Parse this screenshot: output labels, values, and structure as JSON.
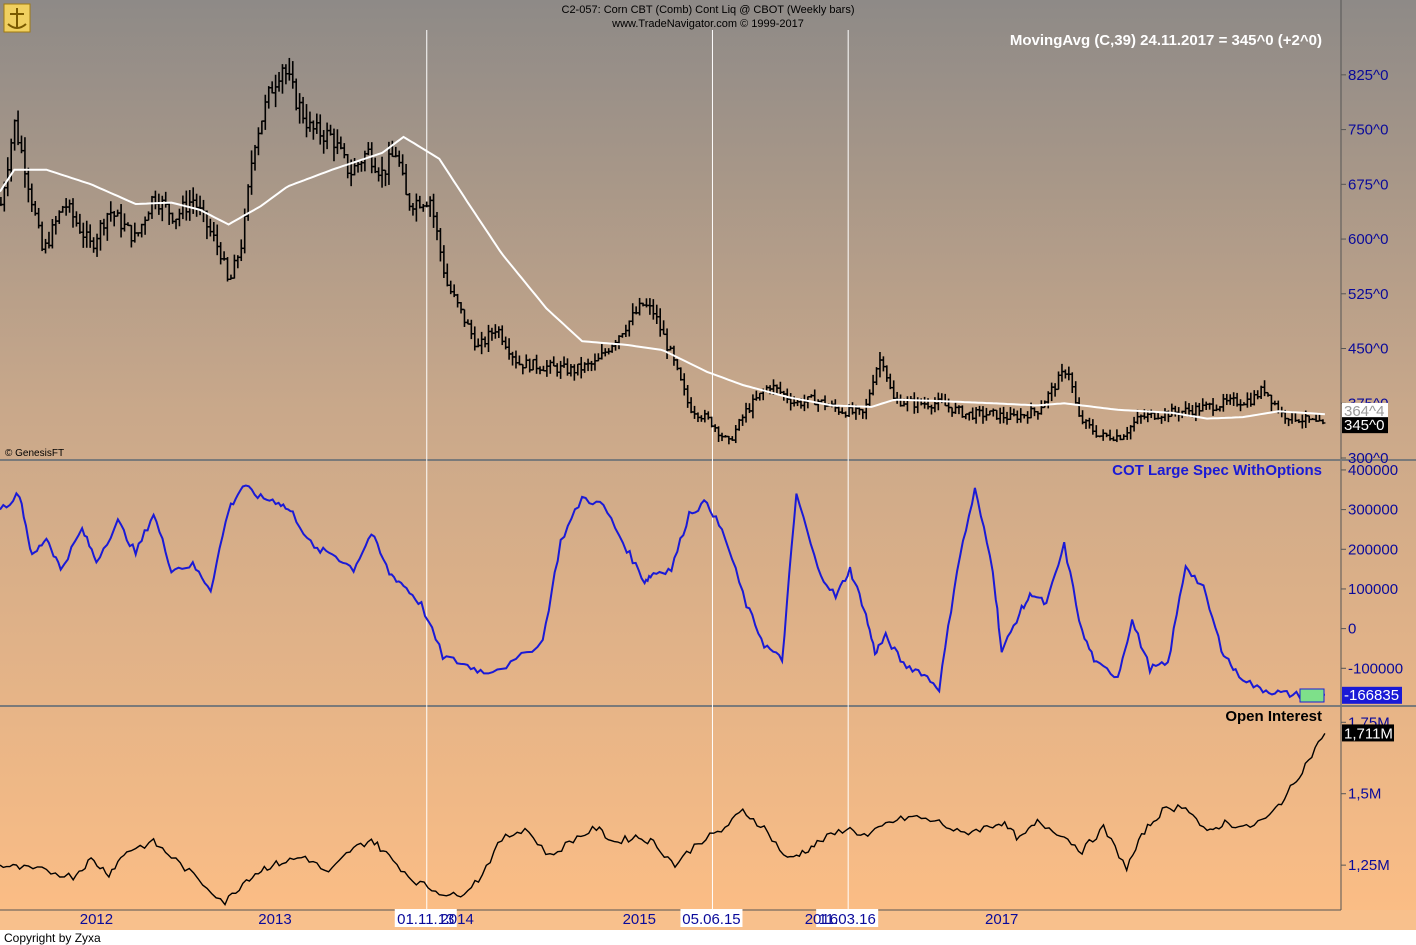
{
  "header": {
    "line1": "C2-057:  Corn CBT (Comb) Cont Liq @ CBOT  (Weekly bars)",
    "line2": "www.TradeNavigator.com © 1999-2017"
  },
  "footer": {
    "copyright": "Copyright by Zyxa"
  },
  "credit": "© GenesisFT",
  "annotation": "MovingAvg (C,39)   24.11.2017 = 345^0 (+2^0)",
  "colors": {
    "price_bars": "#000000",
    "moving_avg": "#ffffff",
    "cot_line": "#1a1ad6",
    "oi_line": "#000000",
    "axis_text": "#0a0a9a",
    "bg_top": "#8e8a87",
    "bg_bottom": "#fbbd85"
  },
  "chart_data": [
    {
      "type": "bar",
      "name": "Price",
      "ylim": [
        300,
        870
      ],
      "yticks": [
        825,
        750,
        675,
        600,
        525,
        450,
        375,
        300
      ],
      "ytick_labels": [
        "825^0",
        "750^0",
        "675^0",
        "600^0",
        "525^0",
        "450^0",
        "375^0",
        "300^0"
      ],
      "markers": [
        {
          "label": "364^4",
          "value": 364.5
        },
        {
          "label": "345^0",
          "value": 345
        }
      ],
      "x_ticks": [
        "2012",
        "2013",
        "2014",
        "2015",
        "2016",
        "2017"
      ],
      "vlines": [
        "01.11.13",
        "05.06.15",
        "11.03.16"
      ],
      "price_path": [
        {
          "t": 2011.44,
          "v": 640
        },
        {
          "t": 2011.52,
          "v": 760
        },
        {
          "t": 2011.58,
          "v": 700
        },
        {
          "t": 2011.68,
          "v": 580
        },
        {
          "t": 2011.8,
          "v": 650
        },
        {
          "t": 2011.95,
          "v": 590
        },
        {
          "t": 2012.05,
          "v": 640
        },
        {
          "t": 2012.2,
          "v": 600
        },
        {
          "t": 2012.3,
          "v": 660
        },
        {
          "t": 2012.42,
          "v": 630
        },
        {
          "t": 2012.52,
          "v": 655
        },
        {
          "t": 2012.68,
          "v": 580
        },
        {
          "t": 2012.72,
          "v": 535
        },
        {
          "t": 2012.8,
          "v": 600
        },
        {
          "t": 2012.86,
          "v": 730
        },
        {
          "t": 2012.95,
          "v": 800
        },
        {
          "t": 2013.02,
          "v": 840
        },
        {
          "t": 2013.1,
          "v": 790
        },
        {
          "t": 2013.18,
          "v": 750
        },
        {
          "t": 2013.3,
          "v": 740
        },
        {
          "t": 2013.4,
          "v": 690
        },
        {
          "t": 2013.5,
          "v": 720
        },
        {
          "t": 2013.58,
          "v": 690
        },
        {
          "t": 2013.66,
          "v": 720
        },
        {
          "t": 2013.72,
          "v": 650
        },
        {
          "t": 2013.85,
          "v": 655
        },
        {
          "t": 2013.94,
          "v": 540
        },
        {
          "t": 2014.02,
          "v": 500
        },
        {
          "t": 2014.12,
          "v": 450
        },
        {
          "t": 2014.22,
          "v": 480
        },
        {
          "t": 2014.34,
          "v": 430
        },
        {
          "t": 2014.5,
          "v": 425
        },
        {
          "t": 2014.65,
          "v": 420
        },
        {
          "t": 2014.78,
          "v": 430
        },
        {
          "t": 2014.94,
          "v": 480
        },
        {
          "t": 2015.04,
          "v": 510
        },
        {
          "t": 2015.1,
          "v": 500
        },
        {
          "t": 2015.2,
          "v": 440
        },
        {
          "t": 2015.3,
          "v": 370
        },
        {
          "t": 2015.42,
          "v": 350
        },
        {
          "t": 2015.52,
          "v": 320
        },
        {
          "t": 2015.62,
          "v": 365
        },
        {
          "t": 2015.75,
          "v": 400
        },
        {
          "t": 2015.9,
          "v": 375
        },
        {
          "t": 2016.0,
          "v": 380
        },
        {
          "t": 2016.15,
          "v": 365
        },
        {
          "t": 2016.28,
          "v": 360
        },
        {
          "t": 2016.34,
          "v": 420
        },
        {
          "t": 2016.38,
          "v": 440
        },
        {
          "t": 2016.44,
          "v": 380
        },
        {
          "t": 2016.55,
          "v": 375
        },
        {
          "t": 2016.7,
          "v": 375
        },
        {
          "t": 2016.85,
          "v": 360
        },
        {
          "t": 2017.0,
          "v": 360
        },
        {
          "t": 2017.1,
          "v": 355
        },
        {
          "t": 2017.25,
          "v": 365
        },
        {
          "t": 2017.35,
          "v": 400
        },
        {
          "t": 2017.42,
          "v": 425
        },
        {
          "t": 2017.48,
          "v": 355
        },
        {
          "t": 2017.6,
          "v": 330
        },
        {
          "t": 2017.72,
          "v": 330
        },
        {
          "t": 2017.82,
          "v": 355
        },
        {
          "t": 2017.92,
          "v": 360
        },
        {
          "t": 2018.1,
          "v": 365
        },
        {
          "t": 2018.3,
          "v": 375
        },
        {
          "t": 2018.45,
          "v": 380
        },
        {
          "t": 2018.52,
          "v": 395
        },
        {
          "t": 2018.62,
          "v": 360
        },
        {
          "t": 2018.78,
          "v": 350
        },
        {
          "t": 2018.86,
          "v": 343
        }
      ],
      "ma_path": [
        {
          "t": 2011.44,
          "v": 665
        },
        {
          "t": 2011.52,
          "v": 695
        },
        {
          "t": 2011.7,
          "v": 695
        },
        {
          "t": 2011.95,
          "v": 675
        },
        {
          "t": 2012.2,
          "v": 648
        },
        {
          "t": 2012.4,
          "v": 650
        },
        {
          "t": 2012.56,
          "v": 640
        },
        {
          "t": 2012.72,
          "v": 620
        },
        {
          "t": 2012.9,
          "v": 645
        },
        {
          "t": 2013.05,
          "v": 672
        },
        {
          "t": 2013.3,
          "v": 695
        },
        {
          "t": 2013.58,
          "v": 718
        },
        {
          "t": 2013.7,
          "v": 740
        },
        {
          "t": 2013.9,
          "v": 710
        },
        {
          "t": 2014.06,
          "v": 650
        },
        {
          "t": 2014.25,
          "v": 580
        },
        {
          "t": 2014.5,
          "v": 505
        },
        {
          "t": 2014.7,
          "v": 460
        },
        {
          "t": 2014.95,
          "v": 455
        },
        {
          "t": 2015.15,
          "v": 448
        },
        {
          "t": 2015.4,
          "v": 418
        },
        {
          "t": 2015.6,
          "v": 400
        },
        {
          "t": 2015.86,
          "v": 383
        },
        {
          "t": 2016.1,
          "v": 372
        },
        {
          "t": 2016.32,
          "v": 370
        },
        {
          "t": 2016.45,
          "v": 380
        },
        {
          "t": 2016.7,
          "v": 378
        },
        {
          "t": 2017.0,
          "v": 375
        },
        {
          "t": 2017.25,
          "v": 372
        },
        {
          "t": 2017.4,
          "v": 375
        },
        {
          "t": 2017.7,
          "v": 366
        },
        {
          "t": 2018.0,
          "v": 362
        },
        {
          "t": 2018.2,
          "v": 354
        },
        {
          "t": 2018.4,
          "v": 356
        },
        {
          "t": 2018.6,
          "v": 364
        },
        {
          "t": 2018.86,
          "v": 360
        }
      ]
    },
    {
      "type": "line",
      "title": "COT Large Spec WithOptions",
      "ylim": [
        -190000,
        420000
      ],
      "yticks": [
        400000,
        300000,
        200000,
        100000,
        0,
        -100000
      ],
      "ytick_labels": [
        "400000",
        "300000",
        "200000",
        "100000",
        "0",
        "-100000"
      ],
      "last_value_label": "-166835",
      "series": [
        {
          "x": [
            2011.44,
            2011.55,
            2011.62,
            2011.7,
            2011.78,
            2011.9,
            2011.98,
            2012.1,
            2012.2,
            2012.3,
            2012.4,
            2012.52,
            2012.62,
            2012.72,
            2012.8,
            2012.9,
            2013.0,
            2013.08,
            2013.2,
            2013.3,
            2013.42,
            2013.52,
            2013.62,
            2013.7,
            2013.8,
            2013.92,
            2014.04,
            2014.15,
            2014.3,
            2014.48,
            2014.58,
            2014.7,
            2014.82,
            2014.95,
            2015.05,
            2015.1,
            2015.2,
            2015.3,
            2015.4,
            2015.5,
            2015.62,
            2015.72,
            2015.82,
            2015.9,
            2016.02,
            2016.12,
            2016.2,
            2016.28,
            2016.34,
            2016.4,
            2016.5,
            2016.6,
            2016.7,
            2016.8,
            2016.9,
            2017.0,
            2017.05,
            2017.15,
            2017.22,
            2017.3,
            2017.4,
            2017.5,
            2017.58,
            2017.7,
            2017.78,
            2017.88,
            2017.98,
            2018.08,
            2018.18,
            2018.28,
            2018.36,
            2018.48,
            2018.58,
            2018.68,
            2018.8,
            2018.86
          ],
          "y": [
            300000,
            340000,
            180000,
            230000,
            150000,
            250000,
            170000,
            270000,
            190000,
            290000,
            150000,
            160000,
            100000,
            300000,
            360000,
            330000,
            320000,
            290000,
            200000,
            190000,
            150000,
            240000,
            140000,
            110000,
            60000,
            -70000,
            -90000,
            -110000,
            -90000,
            -30000,
            220000,
            330000,
            310000,
            200000,
            120000,
            140000,
            150000,
            290000,
            320000,
            230000,
            60000,
            -40000,
            -80000,
            340000,
            150000,
            80000,
            150000,
            50000,
            -60000,
            -20000,
            -90000,
            -110000,
            -150000,
            150000,
            350000,
            150000,
            -60000,
            40000,
            90000,
            60000,
            210000,
            -10000,
            -90000,
            -120000,
            20000,
            -100000,
            -90000,
            160000,
            100000,
            -50000,
            -110000,
            -150000,
            -160000,
            -166835,
            -166835,
            -166835
          ]
        }
      ]
    },
    {
      "type": "line",
      "title": "Open Interest",
      "ylim": [
        1.1,
        1.8
      ],
      "yticks": [
        1.75,
        1.5,
        1.25
      ],
      "ytick_labels": [
        "1,75M",
        "1,5M",
        "1,25M"
      ],
      "last_value_label": "1,711M",
      "series": [
        {
          "x": [
            2011.44,
            2011.55,
            2011.7,
            2011.85,
            2011.95,
            2012.05,
            2012.15,
            2012.3,
            2012.4,
            2012.55,
            2012.7,
            2012.82,
            2012.92,
            2013.02,
            2013.15,
            2013.28,
            2013.4,
            2013.52,
            2013.62,
            2013.75,
            2013.88,
            2014.0,
            2014.12,
            2014.25,
            2014.38,
            2014.52,
            2014.65,
            2014.78,
            2014.88,
            2015.0,
            2015.1,
            2015.22,
            2015.35,
            2015.48,
            2015.6,
            2015.72,
            2015.85,
            2015.95,
            2016.05,
            2016.18,
            2016.3,
            2016.42,
            2016.55,
            2016.7,
            2016.82,
            2016.95,
            2017.05,
            2017.15,
            2017.25,
            2017.38,
            2017.5,
            2017.62,
            2017.75,
            2017.85,
            2017.95,
            2018.08,
            2018.2,
            2018.3,
            2018.42,
            2018.55,
            2018.65,
            2018.75,
            2018.86
          ],
          "y": [
            1.25,
            1.24,
            1.23,
            1.21,
            1.27,
            1.22,
            1.3,
            1.33,
            1.28,
            1.2,
            1.12,
            1.2,
            1.24,
            1.26,
            1.28,
            1.22,
            1.3,
            1.34,
            1.28,
            1.2,
            1.16,
            1.14,
            1.2,
            1.34,
            1.38,
            1.28,
            1.34,
            1.38,
            1.33,
            1.35,
            1.33,
            1.25,
            1.33,
            1.37,
            1.44,
            1.38,
            1.27,
            1.3,
            1.34,
            1.38,
            1.35,
            1.4,
            1.42,
            1.4,
            1.36,
            1.38,
            1.4,
            1.34,
            1.4,
            1.36,
            1.3,
            1.38,
            1.24,
            1.37,
            1.44,
            1.46,
            1.36,
            1.4,
            1.38,
            1.42,
            1.5,
            1.6,
            1.711
          ]
        }
      ]
    }
  ]
}
